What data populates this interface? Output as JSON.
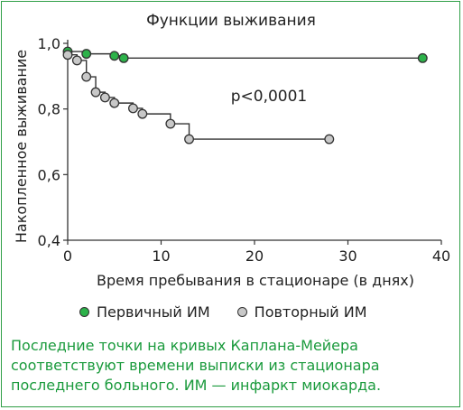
{
  "chart_data": {
    "type": "line",
    "subtype": "kaplan-meier step plot",
    "title": "Функции выживания",
    "xlabel": "Время пребывания в стационаре (в днях)",
    "ylabel": "Накопленное выживание",
    "xlim": [
      0,
      40
    ],
    "ylim": [
      0.4,
      1.0
    ],
    "x_ticks": [
      "0",
      "10",
      "20",
      "30",
      "40"
    ],
    "y_ticks": [
      "0,4",
      "0,6",
      "0,8",
      "1,0"
    ],
    "grid": false,
    "annotation": "p<0,0001",
    "series": [
      {
        "name": "Первичный ИМ",
        "color": "#2db24a",
        "points": [
          [
            0,
            0.975
          ],
          [
            2,
            0.968
          ],
          [
            5,
            0.962
          ],
          [
            6,
            0.955
          ],
          [
            38,
            0.955
          ]
        ]
      },
      {
        "name": "Повторный ИМ",
        "color": "#c8c8c8",
        "points": [
          [
            0,
            0.965
          ],
          [
            1,
            0.948
          ],
          [
            2,
            0.898
          ],
          [
            3,
            0.851
          ],
          [
            4,
            0.835
          ],
          [
            5,
            0.818
          ],
          [
            7,
            0.802
          ],
          [
            8,
            0.785
          ],
          [
            11,
            0.755
          ],
          [
            13,
            0.708
          ],
          [
            28,
            0.708
          ]
        ]
      }
    ]
  },
  "legend": {
    "primary_label": "Первичный ИМ",
    "repeat_label": "Повторный ИМ",
    "primary_color": "#2db24a",
    "repeat_color": "#c8c8c8"
  },
  "note": {
    "line1": "Последние точки на кривых Каплана-Мейера",
    "line2": "соответствуют времени выписки из стационара",
    "line3": "последнего больного. ИМ — инфаркт миокарда."
  }
}
